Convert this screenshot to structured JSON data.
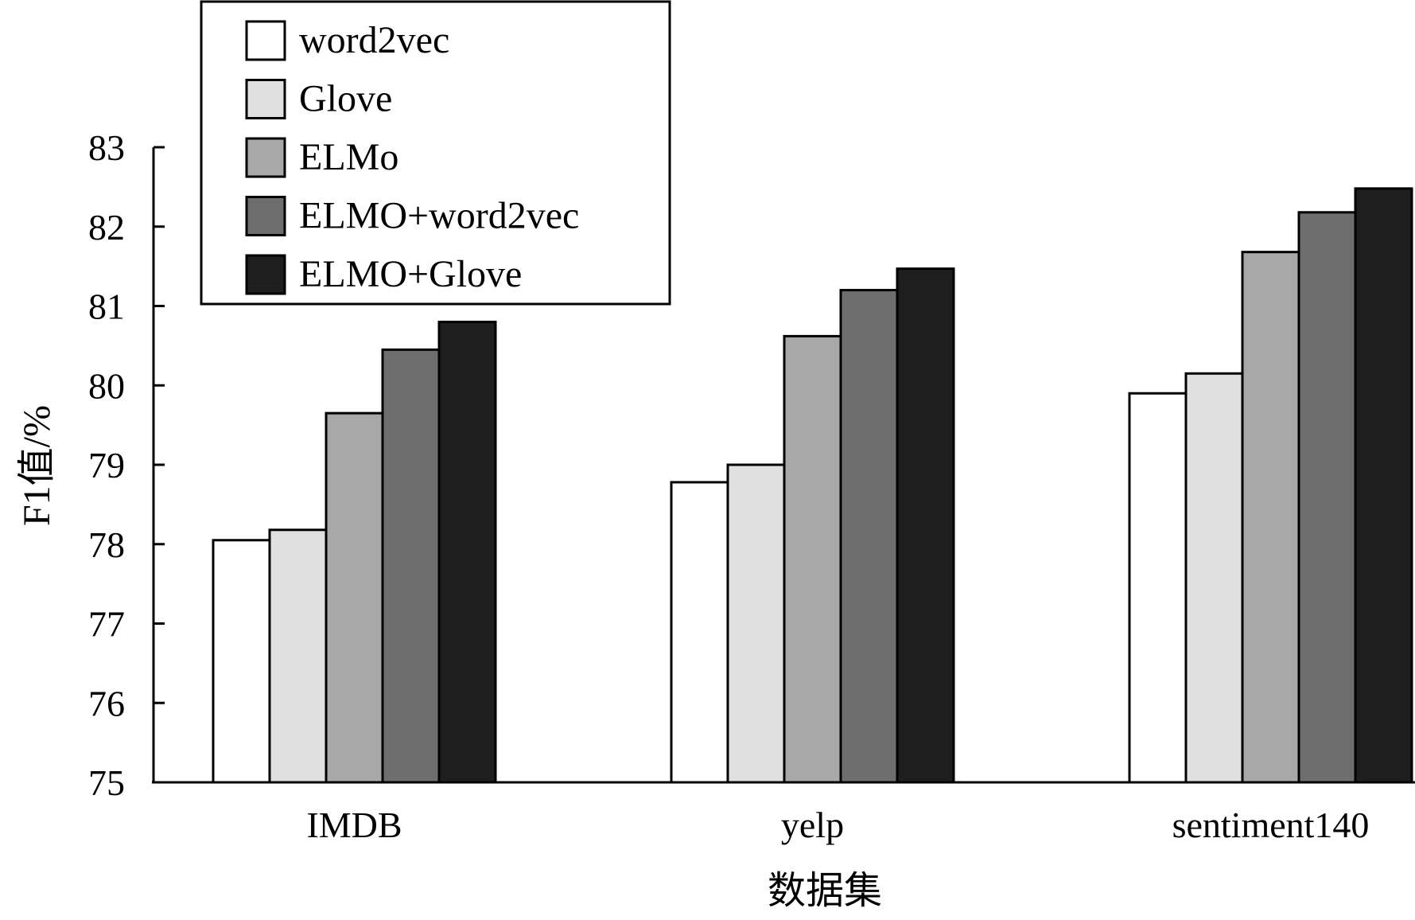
{
  "chart_data": {
    "type": "bar",
    "title": "",
    "xlabel": "数据集",
    "ylabel": "F1值/%",
    "categories": [
      "IMDB",
      "yelp",
      "sentiment140"
    ],
    "series": [
      {
        "name": "word2vec",
        "color": "#ffffff",
        "values": [
          78.05,
          78.78,
          79.9
        ]
      },
      {
        "name": "Glove",
        "color": "#e0e0e0",
        "values": [
          78.18,
          79.0,
          80.15
        ]
      },
      {
        "name": "ELMo",
        "color": "#a8a8a8",
        "values": [
          79.65,
          80.62,
          81.68
        ]
      },
      {
        "name": "ELMO+word2vec",
        "color": "#6e6e6e",
        "values": [
          80.45,
          81.2,
          82.18
        ]
      },
      {
        "name": "ELMO+Glove",
        "color": "#1e1e1e",
        "values": [
          80.8,
          81.47,
          82.48
        ]
      }
    ],
    "ylim": [
      75,
      83
    ],
    "yticks": [
      "75",
      "76",
      "77",
      "78",
      "79",
      "80",
      "81",
      "82",
      "83"
    ],
    "grid": false,
    "legend_position": "top-left"
  }
}
